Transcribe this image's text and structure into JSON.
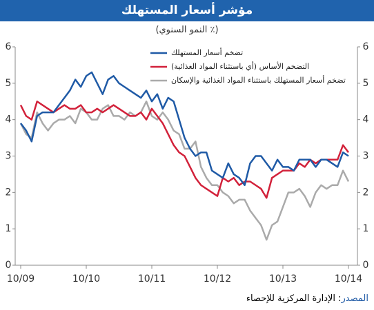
{
  "chart_data": {
    "type": "line",
    "title": "مؤشر أسعار المستهلك",
    "subtitle": "(٪ النمو السنوي)",
    "source_label": "المصدر",
    "source_text": ": الإدارة المركزية للإحصاء",
    "categories": [
      "10/09",
      null,
      null,
      null,
      null,
      null,
      null,
      null,
      null,
      null,
      null,
      null,
      "10/10",
      null,
      null,
      null,
      null,
      null,
      null,
      null,
      null,
      null,
      null,
      null,
      "10/11",
      null,
      null,
      null,
      null,
      null,
      null,
      null,
      null,
      null,
      null,
      null,
      "10/12",
      null,
      null,
      null,
      null,
      null,
      null,
      null,
      null,
      null,
      null,
      null,
      "10/13",
      null,
      null,
      null,
      null,
      null,
      null,
      null,
      null,
      null,
      null,
      null,
      "10/14"
    ],
    "ylim": [
      0,
      6
    ],
    "yticks": [
      0,
      1,
      2,
      3,
      4,
      5,
      6
    ],
    "grid": false,
    "series": [
      {
        "name": "تضخم أسعار المستهلك",
        "color": "#1f5aa6",
        "values": [
          3.9,
          3.7,
          3.4,
          4.1,
          4.2,
          4.2,
          4.2,
          4.4,
          4.6,
          4.8,
          5.1,
          4.9,
          5.2,
          5.3,
          5.0,
          4.7,
          5.1,
          5.2,
          5.0,
          4.9,
          4.8,
          4.7,
          4.6,
          4.8,
          4.5,
          4.7,
          4.3,
          4.6,
          4.5,
          4.0,
          3.5,
          3.2,
          3.0,
          3.1,
          3.1,
          2.6,
          2.5,
          2.4,
          2.8,
          2.5,
          2.4,
          2.2,
          2.8,
          3.0,
          3.0,
          2.8,
          2.6,
          2.9,
          2.7,
          2.7,
          2.6,
          2.9,
          2.9,
          2.9,
          2.7,
          2.9,
          2.9,
          2.8,
          2.7,
          3.1,
          3.0
        ]
      },
      {
        "name": "التضخم الأساس (أي باستثناء المواد الغذائية)",
        "color": "#d2213a",
        "values": [
          4.4,
          4.1,
          4.0,
          4.5,
          4.4,
          4.3,
          4.2,
          4.3,
          4.4,
          4.3,
          4.3,
          4.4,
          4.2,
          4.2,
          4.3,
          4.2,
          4.3,
          4.4,
          4.3,
          4.2,
          4.1,
          4.1,
          4.2,
          4.0,
          4.3,
          4.1,
          3.9,
          3.6,
          3.3,
          3.1,
          3.0,
          2.7,
          2.4,
          2.2,
          2.1,
          2.0,
          1.9,
          2.4,
          2.3,
          2.4,
          2.2,
          2.3,
          2.3,
          2.2,
          2.1,
          1.85,
          2.4,
          2.5,
          2.6,
          2.6,
          2.6,
          2.8,
          2.7,
          2.9,
          2.8,
          2.9,
          2.9,
          2.9,
          2.9,
          3.3,
          3.1
        ]
      },
      {
        "name": "تضخم أسعار المستهلك باستثناء المواد الغذائية والإسكان",
        "color": "#aaaaaa",
        "values": [
          3.9,
          3.6,
          3.5,
          4.2,
          3.9,
          3.7,
          3.9,
          4.0,
          4.0,
          4.1,
          3.9,
          4.3,
          4.2,
          4.0,
          4.0,
          4.3,
          4.4,
          4.1,
          4.1,
          4.0,
          4.2,
          4.1,
          4.2,
          4.5,
          4.1,
          4.0,
          4.2,
          4.0,
          3.7,
          3.6,
          3.2,
          3.2,
          3.4,
          2.7,
          2.4,
          2.2,
          2.2,
          2.0,
          1.9,
          1.7,
          1.8,
          1.8,
          1.5,
          1.3,
          1.1,
          0.7,
          1.1,
          1.2,
          1.6,
          2.0,
          2.0,
          2.1,
          1.9,
          1.6,
          2.0,
          2.2,
          2.1,
          2.2,
          2.2,
          2.6,
          2.3
        ]
      }
    ]
  }
}
